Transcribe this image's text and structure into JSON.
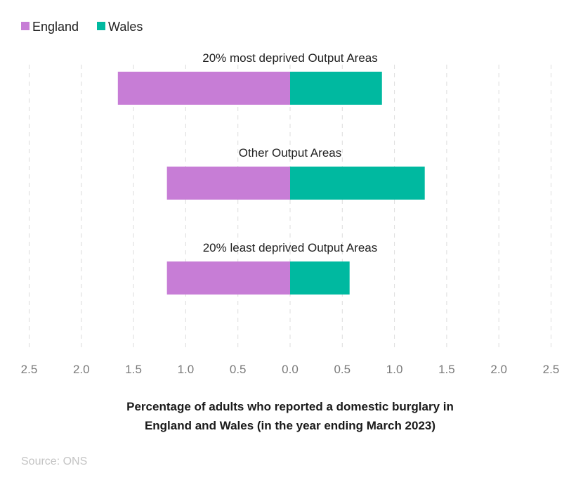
{
  "chart_data": {
    "type": "bar",
    "orientation": "horizontal-diverging",
    "categories": [
      "20% most deprived Output Areas",
      "Other Output Areas",
      "20% least deprived Output Areas"
    ],
    "series": [
      {
        "name": "England",
        "values": [
          1.65,
          1.18,
          1.18
        ],
        "direction": "left",
        "color": "#c77dd6"
      },
      {
        "name": "Wales",
        "values": [
          0.88,
          1.29,
          0.57
        ],
        "direction": "right",
        "color": "#00b9a0"
      }
    ],
    "x_ticks": [
      "2.5",
      "2.0",
      "1.5",
      "1.0",
      "0.5",
      "0.0",
      "0.5",
      "1.0",
      "1.5",
      "2.0",
      "2.5"
    ],
    "xlim": [
      -2.5,
      2.5
    ],
    "xlabel_line1": "Percentage of adults who reported a domestic burglary in",
    "xlabel_line2": "England and Wales (in the year ending March 2023)",
    "legend_position": "top-left",
    "grid": true
  },
  "source": "Source: ONS"
}
